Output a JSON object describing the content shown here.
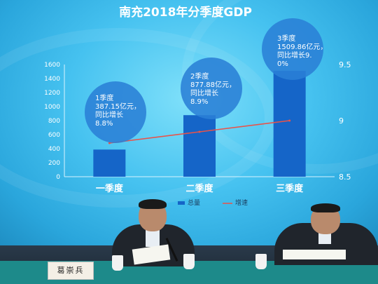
{
  "chart_data": {
    "type": "bar",
    "title": "南充2018年分季度GDP",
    "categories": [
      "一季度",
      "二季度",
      "三季度"
    ],
    "series": [
      {
        "name": "总量",
        "type": "bar",
        "values": [
          387.15,
          877.88,
          1509.86
        ],
        "axis": "left"
      },
      {
        "name": "增速",
        "type": "line",
        "values": [
          8.8,
          8.9,
          9.0
        ],
        "axis": "right"
      }
    ],
    "annotations": [
      "1季度387.15亿元，同比增长8.8%",
      "2季度877.88亿元，同比增长8.9%",
      "3季度1509.86亿元，同比增长9.0%"
    ],
    "ylim_left": [
      0,
      1600
    ],
    "yticks_left": [
      0,
      200,
      400,
      600,
      800,
      1000,
      1200,
      1400,
      1600
    ],
    "ylim_right": [
      8.5,
      9.5
    ],
    "yticks_right": [
      8.5,
      9,
      9.5
    ],
    "legend_position": "bottom",
    "grid": false,
    "colors": {
      "bar": "#1565c8",
      "line": "#e8534a",
      "bubble": "#2a7fd6",
      "text": "#ffffff",
      "title": "#ffffff"
    }
  },
  "nameplate": "葛崇兵"
}
